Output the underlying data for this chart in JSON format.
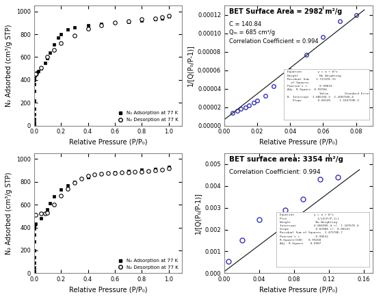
{
  "top_left": {
    "adsorption_x": [
      5e-06,
      1e-05,
      2e-05,
      3e-05,
      5e-05,
      0.0001,
      0.0002,
      0.0003,
      0.0005,
      0.001,
      0.002,
      0.005,
      0.01,
      0.015,
      0.02,
      0.03,
      0.05,
      0.08,
      0.1,
      0.12,
      0.15,
      0.18,
      0.2,
      0.25,
      0.3,
      0.4,
      0.5,
      0.6,
      0.7,
      0.8,
      0.9,
      0.95,
      1.0
    ],
    "adsorption_y": [
      10,
      30,
      60,
      100,
      150,
      220,
      300,
      360,
      400,
      420,
      430,
      440,
      448,
      455,
      462,
      475,
      500,
      550,
      590,
      640,
      710,
      770,
      800,
      840,
      860,
      880,
      890,
      900,
      910,
      920,
      930,
      940,
      955
    ],
    "desorption_x": [
      0.005,
      0.01,
      0.05,
      0.1,
      0.15,
      0.2,
      0.3,
      0.4,
      0.5,
      0.6,
      0.7,
      0.8,
      0.9,
      0.95,
      1.0
    ],
    "desorption_y": [
      448,
      455,
      505,
      600,
      660,
      720,
      790,
      850,
      880,
      900,
      915,
      930,
      940,
      950,
      960
    ],
    "ylabel": "N₂ Adsorbed (cm³/g STP)",
    "xlabel": "Relative Pressure (P/P₀)",
    "ylim": [
      0,
      1050
    ],
    "xlim": [
      0.0,
      1.1
    ],
    "yticks": [
      0,
      200,
      400,
      600,
      800,
      1000
    ],
    "xticks": [
      0.0,
      0.2,
      0.4,
      0.6,
      0.8,
      1.0
    ]
  },
  "bottom_left": {
    "adsorption_x": [
      5e-06,
      1e-05,
      2e-05,
      3e-05,
      5e-05,
      0.0001,
      0.0002,
      0.0003,
      0.0005,
      0.001,
      0.002,
      0.005,
      0.01,
      0.05,
      0.08,
      0.1,
      0.12,
      0.15,
      0.2,
      0.25,
      0.3,
      0.4,
      0.5,
      0.6,
      0.7,
      0.8,
      0.9,
      1.0
    ],
    "adsorption_y": [
      5,
      20,
      50,
      90,
      140,
      200,
      280,
      340,
      390,
      410,
      420,
      428,
      435,
      480,
      520,
      560,
      610,
      670,
      730,
      770,
      800,
      840,
      870,
      885,
      895,
      905,
      915,
      930
    ],
    "desorption_x": [
      0.01,
      0.05,
      0.08,
      0.1,
      0.15,
      0.2,
      0.25,
      0.3,
      0.35,
      0.4,
      0.45,
      0.5,
      0.55,
      0.6,
      0.65,
      0.7,
      0.75,
      0.8,
      0.85,
      0.9,
      0.95,
      1.0
    ],
    "desorption_y": [
      510,
      520,
      525,
      530,
      600,
      680,
      740,
      790,
      830,
      855,
      865,
      870,
      875,
      878,
      882,
      885,
      888,
      890,
      895,
      900,
      908,
      920
    ],
    "ylabel": "N₂ Adsorbed (cm³/g STP)",
    "xlabel": "Relative Pressure (P/P₀)",
    "ylim": [
      0,
      1050
    ],
    "xlim": [
      0.0,
      1.1
    ],
    "yticks": [
      0,
      200,
      400,
      600,
      800,
      1000
    ],
    "xticks": [
      0.0,
      0.2,
      0.4,
      0.6,
      0.8,
      1.0
    ]
  },
  "top_right": {
    "x": [
      0.005,
      0.008,
      0.01,
      0.013,
      0.015,
      0.018,
      0.02,
      0.025,
      0.03,
      0.04,
      0.05,
      0.06,
      0.07,
      0.08
    ],
    "y": [
      1.4e-05,
      1.6e-05,
      1.8e-05,
      2e-05,
      2.2e-05,
      2.5e-05,
      2.7e-05,
      3.2e-05,
      4.3e-05,
      6e-05,
      7.7e-05,
      9.6e-05,
      0.000113,
      0.00012
    ],
    "fit_x": [
      0.0,
      0.085
    ],
    "fit_y": [
      6.5e-06,
      0.0001255
    ],
    "title": "BET Surface Area = 2982 m²/g",
    "line1": "C = 140.84",
    "line2": "Qₘ = 685 cm³/g",
    "line3": "Correlation Coefficient = 0.994",
    "xlabel": "Relative Pressure (P/P₀)",
    "ylabel": "1/[Q(P₀/P-1)]",
    "xlim": [
      0.0,
      0.09
    ],
    "ylim": [
      0.0,
      0.00013
    ],
    "xticks": [
      0.0,
      0.02,
      0.04,
      0.06,
      0.08
    ],
    "yticks": [
      0.0,
      2e-05,
      4e-05,
      6e-05,
      8e-05,
      0.0001,
      0.00012
    ],
    "inset_text": "Equation         y = a + b*x\nWeight            No Weighting\nResidual Sum    1.73747E-15\n  of Squares\nPearson's r       0.99833\nAdj. R-Square  0.99784\n                  Value         Standard Error\nB  Intercept  1.08625E-5  2.268756E-6\n   Slope         0.00149     1.166759E-5"
  },
  "bottom_right": {
    "x": [
      0.005,
      0.02,
      0.04,
      0.07,
      0.09,
      0.11,
      0.13
    ],
    "y": [
      0.00055,
      0.0015,
      0.00245,
      0.0029,
      0.0034,
      0.0043,
      0.0044
    ],
    "fit_x": [
      0.0,
      0.155
    ],
    "fit_y": [
      8e-05,
      0.00475
    ],
    "title": "BET surface area: 3354 m²/g",
    "line1": "Correlation Coefficient: 0.994",
    "xlabel": "Relative Pressure (P/P₀)",
    "ylabel": "1/[Q(P₀/P-1)]",
    "xlim": [
      0.0,
      0.17
    ],
    "ylim": [
      0.0,
      0.0055
    ],
    "xticks": [
      0.0,
      0.04,
      0.08,
      0.12,
      0.16
    ],
    "yticks": [
      0.0,
      0.001,
      0.002,
      0.003,
      0.004,
      0.005
    ],
    "inset_text": "Equation           y = a + b*x\nPlot                 1/[Q(P/P-1)]\nWeight              No Weighting\nIntercept          4.06695E-4 +/- 1.10767E-4\nSlope               0.02988 +/- 0.00141\nResidual Sum of Squares  1.47570E-7\nPearson's r         0.99632\nR-Square(COD)   0.99268\nAdj. R-Square    0.9907"
  },
  "adsorption_color": "#000000",
  "desorption_color": "#000000",
  "bet_dot_color": "#3333bb",
  "bet_line_color": "#222222",
  "bg_color": "#ffffff",
  "legend_label_ads": "N₂ Adsorption at 77 K",
  "legend_label_des": "N₂ Desorption at 77 K"
}
